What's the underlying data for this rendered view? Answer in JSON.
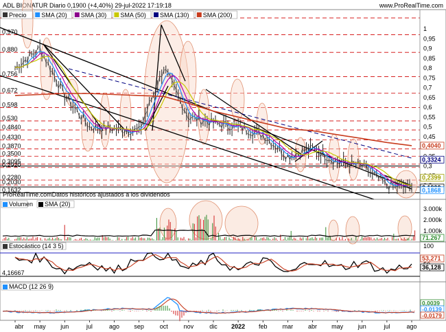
{
  "header": {
    "title": "ADL BIONATUR Diario 0,1900 (+4,40%) 29-jul-2022 17:19:18",
    "brand": "www.ProRealTime.com"
  },
  "price_panel": {
    "legend": [
      "Precio",
      "SMA (20)",
      "SMA (30)",
      "SMA (50)",
      "SMA (130)",
      "SMA (200)"
    ],
    "legend_colors": [
      "#333333",
      "#1e90ff",
      "#8b008b",
      "#c8c800",
      "#000080",
      "#c83c1e"
    ],
    "left_levels": [
      "1,056",
      "0,970",
      "0,880",
      "0,756",
      "0,672",
      "0,598",
      "0,530",
      "0,4840",
      "0,4330",
      "0,3870",
      "0,3500",
      "0,3095",
      "0,2920",
      "0,2280",
      "0,2030",
      "0,1632"
    ],
    "right_ticks": [
      "1",
      "0,95",
      "0,9",
      "0,85",
      "0,8",
      "0,75",
      "0,7",
      "0,65",
      "0,6",
      "0,55",
      "0,5",
      "0,45",
      "0,4",
      "0,35",
      "0,3",
      "0,25",
      "0,2"
    ],
    "right_badges": [
      {
        "text": "0,4040",
        "color": "#c83c1e"
      },
      {
        "text": "0,3324",
        "color": "#000080"
      },
      {
        "text": "0,2399",
        "color": "#a0a000"
      },
      {
        "text": "0,1900",
        "color": "#000000"
      },
      {
        "text": "0,1868",
        "color": "#1e90ff"
      }
    ],
    "footnote": "ProRealTime.comDatos históricos ajustados a los dividendos"
  },
  "volume_panel": {
    "legend": [
      "Volumen",
      "SMA (20)"
    ],
    "legend_colors": [
      "#1e90ff",
      "#000000"
    ],
    "right_ticks": [
      "3.000k",
      "2.000k",
      "1.000k"
    ],
    "badge": {
      "text": "71.267",
      "color": "#2e8b2e"
    }
  },
  "stoch_panel": {
    "legend": "Estocástico (14 3 5)",
    "left_level": "4,16667",
    "right_ticks": [
      "100",
      "50"
    ],
    "badges": [
      {
        "text": "53,271",
        "color": "#c83c1e"
      },
      {
        "text": "36,128",
        "color": "#000000"
      }
    ]
  },
  "macd_panel": {
    "legend": "MACD (12 26 9)",
    "badges": [
      {
        "text": "0,0039",
        "color": "#2e8b2e"
      },
      {
        "text": "-0,0139",
        "color": "#1e90ff"
      },
      {
        "text": "-0,0179",
        "color": "#c83c1e"
      }
    ]
  },
  "x_axis": [
    "abr",
    "may",
    "jun",
    "jul",
    "ago",
    "sep",
    "oct",
    "nov",
    "dic",
    "2022",
    "feb",
    "mar",
    "abr",
    "may",
    "jun",
    "jul",
    "ago"
  ],
  "chart_data": {
    "type": "line",
    "title": "ADL BIONATUR Diario 0,1900 (+4,40%) 29-jul-2022 17:19:18",
    "x": [
      "abr",
      "may",
      "jun",
      "jul",
      "ago",
      "sep",
      "oct",
      "nov",
      "dic",
      "2022",
      "feb",
      "mar",
      "abr",
      "may",
      "jun",
      "jul",
      "ago"
    ],
    "price": [
      0.8,
      0.9,
      0.66,
      0.5,
      0.49,
      0.48,
      0.8,
      0.55,
      0.52,
      0.5,
      0.46,
      0.35,
      0.39,
      0.32,
      0.3,
      0.2,
      0.19
    ],
    "sma200": [
      0.66,
      0.665,
      0.67,
      0.67,
      0.665,
      0.66,
      0.655,
      0.62,
      0.58,
      0.55,
      0.52,
      0.49,
      0.48,
      0.46,
      0.44,
      0.42,
      0.404
    ],
    "stoch_k": [
      70,
      80,
      25,
      60,
      20,
      85,
      90,
      30,
      80,
      25,
      70,
      10,
      70,
      35,
      60,
      20,
      53
    ],
    "ylim": [
      0.16,
      1.056
    ],
    "grid": true,
    "legend": "top-left"
  }
}
